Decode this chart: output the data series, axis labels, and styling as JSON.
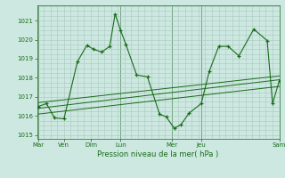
{
  "background_color": "#cce8e0",
  "grid_color": "#aac8c0",
  "line_color": "#1a6b1a",
  "marker_color": "#1a6b1a",
  "xlabel": "Pression niveau de la mer( hPa )",
  "ylim": [
    1014.8,
    1021.8
  ],
  "yticks": [
    1015,
    1016,
    1017,
    1018,
    1019,
    1020,
    1021
  ],
  "xlim": [
    0,
    9.0
  ],
  "xtick_positions": [
    0.05,
    1.0,
    2.0,
    3.1,
    5.0,
    6.1,
    9.0
  ],
  "xtick_labels": [
    "Mar",
    "Ven",
    "Dim",
    "Lun",
    "Mer",
    "Jeu",
    "Sam"
  ],
  "vline_positions": [
    0.05,
    3.1,
    5.0,
    6.1,
    9.0
  ],
  "series1_x": [
    0.05,
    0.35,
    0.65,
    1.0,
    1.5,
    1.85,
    2.1,
    2.4,
    2.7,
    2.9,
    3.1,
    3.3,
    3.7,
    4.1,
    4.55,
    4.8,
    5.1,
    5.35,
    5.65,
    6.1,
    6.4,
    6.75,
    7.1,
    7.5,
    8.05,
    8.55,
    8.75,
    9.0
  ],
  "series1_y": [
    1016.5,
    1016.65,
    1015.9,
    1015.85,
    1018.85,
    1019.7,
    1019.5,
    1019.35,
    1019.65,
    1021.35,
    1020.5,
    1019.75,
    1018.15,
    1018.05,
    1016.1,
    1015.95,
    1015.35,
    1015.55,
    1016.15,
    1016.65,
    1018.35,
    1019.65,
    1019.65,
    1019.15,
    1020.55,
    1019.95,
    1016.65,
    1017.85
  ],
  "series2_x": [
    0.05,
    9.0
  ],
  "series2_y": [
    1016.4,
    1017.9
  ],
  "series3_x": [
    0.05,
    9.0
  ],
  "series3_y": [
    1016.1,
    1017.55
  ],
  "series4_x": [
    0.05,
    9.0
  ],
  "series4_y": [
    1016.7,
    1018.1
  ]
}
